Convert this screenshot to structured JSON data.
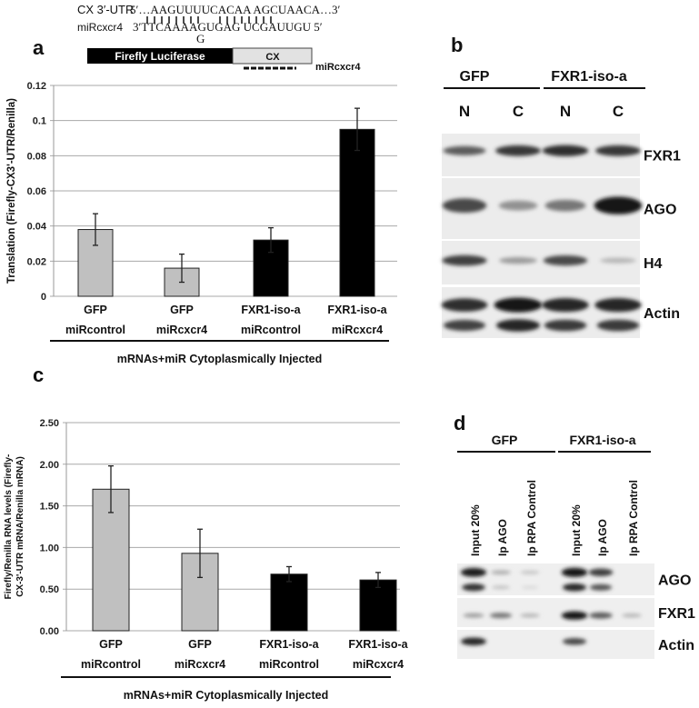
{
  "panel_labels": {
    "a": "a",
    "b": "b",
    "c": "c",
    "d": "d"
  },
  "construct": {
    "utr_label": "CX 3′-UTR",
    "utr_seq": "5′…AAGUUUUCACAA AGCUAACA…3′",
    "mir_label": "miRcxcr4",
    "mir_seq": "3′TTCAAAAGUGAG UCGAUUGU 5′",
    "bulge": "G",
    "firefly": "Firefly Luciferase",
    "cx": "CX",
    "mir_tag": "miRcxcr4",
    "colors": {
      "firefly": "#000000",
      "cx": "#e2e2e2"
    }
  },
  "chart_data": [
    {
      "type": "bar",
      "panel": "a",
      "categories": [
        [
          "GFP",
          "miRcontrol"
        ],
        [
          "GFP",
          "miRcxcr4"
        ],
        [
          "FXR1-iso-a",
          "miRcontrol"
        ],
        [
          "FXR1-iso-a",
          "miRcxcr4"
        ]
      ],
      "values": [
        0.038,
        0.016,
        0.032,
        0.095
      ],
      "errors": [
        0.009,
        0.008,
        0.007,
        0.012
      ],
      "colors": [
        "#c0c0c0",
        "#c0c0c0",
        "#000000",
        "#000000"
      ],
      "ylabel": "Translation (Firefly-CX3'-UTR/Renilla)",
      "xlabel": "mRNAs+miR Cytoplasmically Injected",
      "ylim": [
        0,
        0.12
      ],
      "yticks": [
        "0",
        "0.02",
        "0.04",
        "0.06",
        "0.08",
        "0.1",
        "0.12"
      ],
      "grid": true
    },
    {
      "type": "bar",
      "panel": "c",
      "categories": [
        [
          "GFP",
          "miRcontrol"
        ],
        [
          "GFP",
          "miRcxcr4"
        ],
        [
          "FXR1-iso-a",
          "miRcontrol"
        ],
        [
          "FXR1-iso-a",
          "miRcxcr4"
        ]
      ],
      "values": [
        1.7,
        0.93,
        0.68,
        0.61
      ],
      "errors": [
        0.28,
        0.29,
        0.09,
        0.09
      ],
      "colors": [
        "#c0c0c0",
        "#c0c0c0",
        "#000000",
        "#000000"
      ],
      "ylabel": [
        "Firefly/Renilla RNA levels (Firefly-",
        "CX-3'-UTR mRNA/Renilla mRNA)"
      ],
      "xlabel": "mRNAs+miR Cytoplasmically Injected",
      "ylim": [
        0,
        2.5
      ],
      "yticks": [
        "0.00",
        "0.50",
        "1.00",
        "1.50",
        "2.00",
        "2.50"
      ],
      "grid": true
    }
  ],
  "blot_b": {
    "groups": [
      "GFP",
      "FXR1-iso-a"
    ],
    "lanes": [
      "N",
      "C",
      "N",
      "C"
    ],
    "rows": [
      {
        "label": "FXR1",
        "bands": [
          0.6,
          0.8,
          0.85,
          0.8
        ]
      },
      {
        "label": "AGO",
        "bands": [
          0.7,
          0.3,
          0.45,
          1.0
        ]
      },
      {
        "label": "H4",
        "bands": [
          0.75,
          0.25,
          0.7,
          0.1
        ]
      },
      {
        "label": "Actin",
        "bands": [
          0.85,
          1.0,
          0.9,
          0.9
        ]
      }
    ]
  },
  "blot_d": {
    "groups": [
      "GFP",
      "FXR1-iso-a"
    ],
    "lanes": [
      "Input 20%",
      "Ip AGO",
      "Ip RPA Control",
      "Input 20%",
      "Ip AGO",
      "Ip RPA Control"
    ],
    "rows": [
      {
        "label": "AGO",
        "bands": [
          0.95,
          0.15,
          0.03,
          1.0,
          0.75,
          0.0
        ]
      },
      {
        "label": "FXR1",
        "bands": [
          0.25,
          0.45,
          0.12,
          1.0,
          0.6,
          0.12
        ]
      },
      {
        "label": "Actin",
        "bands": [
          0.9,
          0.0,
          0.0,
          0.7,
          0.0,
          0.0
        ]
      }
    ]
  }
}
